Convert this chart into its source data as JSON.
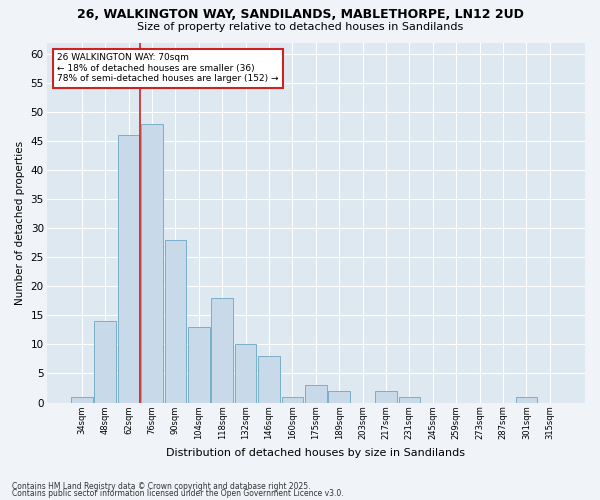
{
  "title1": "26, WALKINGTON WAY, SANDILANDS, MABLETHORPE, LN12 2UD",
  "title2": "Size of property relative to detached houses in Sandilands",
  "xlabel": "Distribution of detached houses by size in Sandilands",
  "ylabel": "Number of detached properties",
  "categories": [
    "34sqm",
    "48sqm",
    "62sqm",
    "76sqm",
    "90sqm",
    "104sqm",
    "118sqm",
    "132sqm",
    "146sqm",
    "160sqm",
    "175sqm",
    "189sqm",
    "203sqm",
    "217sqm",
    "231sqm",
    "245sqm",
    "259sqm",
    "273sqm",
    "287sqm",
    "301sqm",
    "315sqm"
  ],
  "values": [
    1,
    14,
    46,
    48,
    28,
    13,
    18,
    10,
    8,
    1,
    3,
    2,
    0,
    2,
    1,
    0,
    0,
    0,
    0,
    1,
    0
  ],
  "bar_color": "#c8daea",
  "bar_edge_color": "#7aafc8",
  "vline_color": "#cc2222",
  "vline_x_index": 3,
  "annotation_title": "26 WALKINGTON WAY: 70sqm",
  "annotation_line1": "← 18% of detached houses are smaller (36)",
  "annotation_line2": "78% of semi-detached houses are larger (152) →",
  "annotation_box_color": "#cc2222",
  "ylim": [
    0,
    62
  ],
  "yticks": [
    0,
    5,
    10,
    15,
    20,
    25,
    30,
    35,
    40,
    45,
    50,
    55,
    60
  ],
  "plot_bg_color": "#dde8f0",
  "fig_bg_color": "#f0f4f8",
  "footnote1": "Contains HM Land Registry data © Crown copyright and database right 2025.",
  "footnote2": "Contains public sector information licensed under the Open Government Licence v3.0."
}
